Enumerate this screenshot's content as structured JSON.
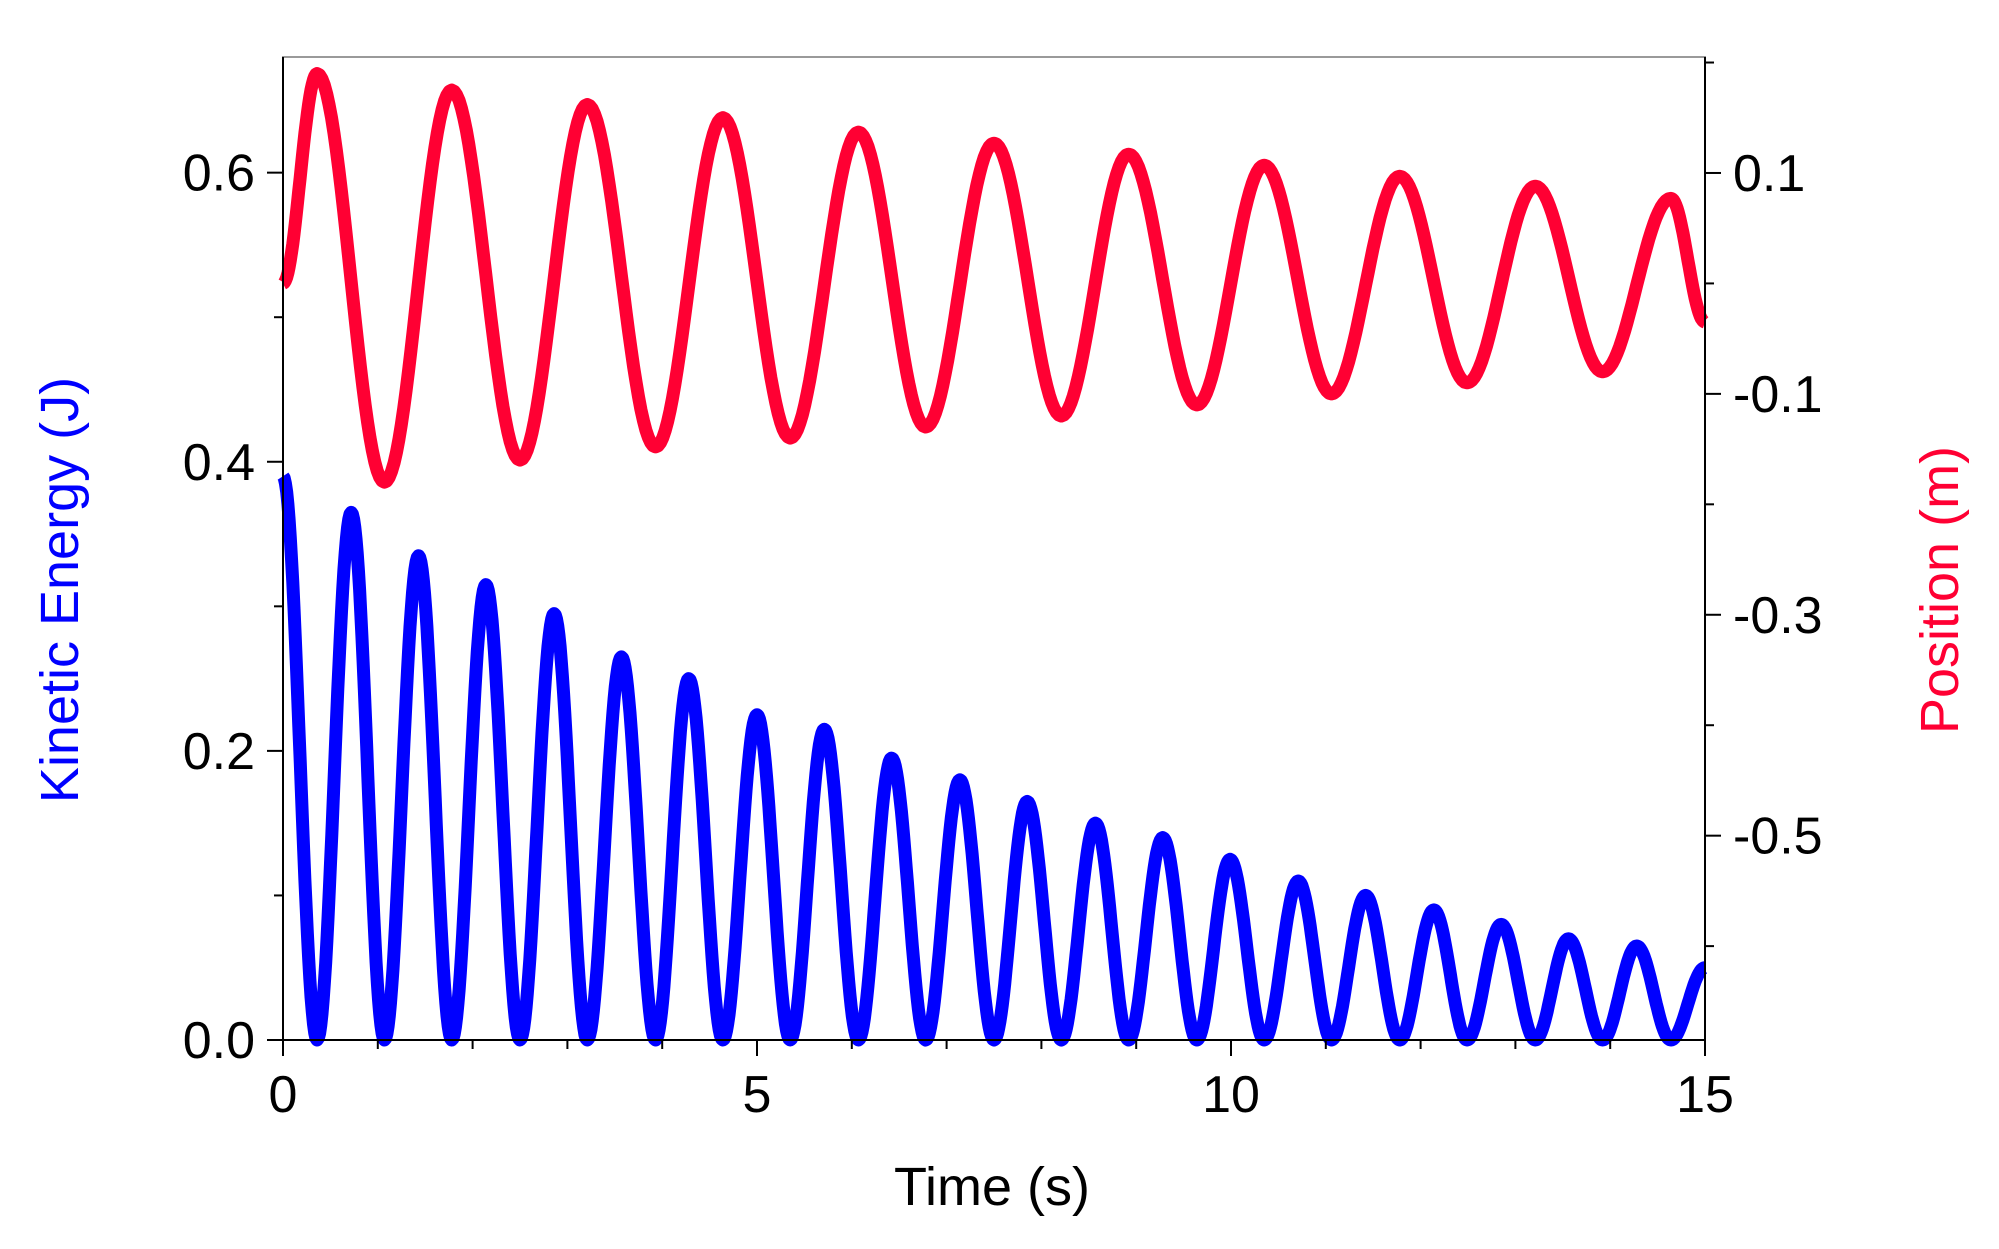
{
  "chart_data": {
    "type": "line",
    "title": "",
    "xlabel": "Time (s)",
    "ylabel_left": "Kinetic Energy (J)",
    "ylabel_right": "Position (m)",
    "xlim": [
      0,
      15
    ],
    "ylim_left": [
      0,
      0.68
    ],
    "ylim_right": [
      -0.685,
      0.205
    ],
    "x_ticks": [
      0,
      5,
      10,
      15
    ],
    "x_tick_labels": [
      "0",
      "5",
      "10",
      "15"
    ],
    "y_left_ticks": [
      0,
      0.2,
      0.4,
      0.6
    ],
    "y_left_tick_labels": [
      "0.0",
      "0.2",
      "0.4",
      "0.6"
    ],
    "y_right_ticks": [
      0.1,
      -0.1,
      -0.3,
      -0.5
    ],
    "y_right_tick_labels": [
      "0.1",
      "-0.1",
      "-0.3",
      "-0.5"
    ],
    "grid": false,
    "legend": "none",
    "colors": {
      "kinetic_energy": "#0000ff",
      "position": "#ff0033",
      "frame": "#000000",
      "label_left": "#0000ff",
      "label_right": "#ff0033"
    },
    "series": [
      {
        "axis": "left",
        "color": "#0000ff",
        "x": [
          0.0,
          0.36,
          0.72,
          1.07,
          1.43,
          1.78,
          2.14,
          2.5,
          2.86,
          3.21,
          3.57,
          3.93,
          4.28,
          4.64,
          5.0,
          5.35,
          5.71,
          6.07,
          6.42,
          6.78,
          7.14,
          7.5,
          7.85,
          8.21,
          8.57,
          8.92,
          9.28,
          9.64,
          9.99,
          10.35,
          10.71,
          11.06,
          11.42,
          11.78,
          12.14,
          12.49,
          12.85,
          13.21,
          13.56,
          13.92,
          14.28,
          14.64,
          15.0
        ],
        "values": [
          0.39,
          0.0,
          0.365,
          0.0,
          0.335,
          0.0,
          0.315,
          0.0,
          0.295,
          0.0,
          0.265,
          0.0,
          0.25,
          0.0,
          0.225,
          0.0,
          0.215,
          0.0,
          0.195,
          0.0,
          0.18,
          0.0,
          0.165,
          0.0,
          0.15,
          0.0,
          0.14,
          0.0,
          0.125,
          0.0,
          0.11,
          0.0,
          0.1,
          0.0,
          0.09,
          0.0,
          0.08,
          0.0,
          0.07,
          0.0,
          0.065,
          0.0,
          0.05
        ]
      },
      {
        "axis": "right",
        "color": "#ff0033",
        "x": [
          0.0,
          0.36,
          1.07,
          1.78,
          2.5,
          3.21,
          3.93,
          4.64,
          5.35,
          6.07,
          6.78,
          7.5,
          8.21,
          8.92,
          9.64,
          10.35,
          11.06,
          11.78,
          12.49,
          13.21,
          13.92,
          14.64,
          15.0
        ],
        "values": [
          0.0,
          0.19,
          -0.18,
          0.175,
          -0.16,
          0.162,
          -0.148,
          0.15,
          -0.14,
          0.137,
          -0.13,
          0.127,
          -0.12,
          0.117,
          -0.11,
          0.107,
          -0.1,
          0.097,
          -0.09,
          0.088,
          -0.08,
          0.077,
          -0.035
        ]
      }
    ]
  }
}
